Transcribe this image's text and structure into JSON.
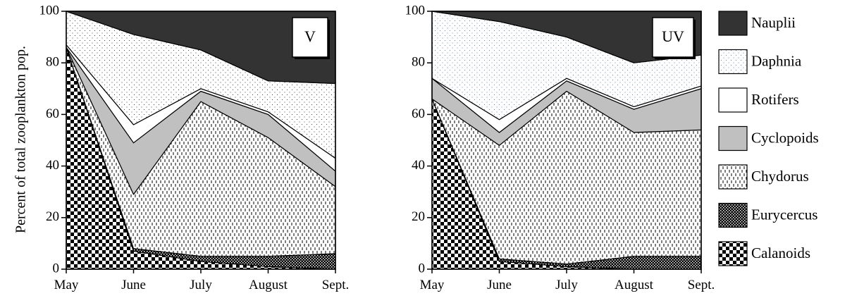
{
  "chart_data": [
    {
      "type": "area",
      "stacked": true,
      "panel_label": "V",
      "ylabel": "Percent of total zooplankton pop.",
      "ylim": [
        0,
        100
      ],
      "yticks": [
        0,
        20,
        40,
        60,
        80,
        100
      ],
      "categories": [
        "May",
        "June",
        "July",
        "August",
        "Sept."
      ],
      "series": [
        {
          "name": "Calanoids",
          "values": [
            86,
            7,
            3,
            1,
            0
          ]
        },
        {
          "name": "Eurycercus",
          "values": [
            0,
            1,
            2,
            4,
            6
          ]
        },
        {
          "name": "Chydorus",
          "values": [
            0,
            21,
            60,
            46,
            26
          ]
        },
        {
          "name": "Cyclopoids",
          "values": [
            0,
            20,
            4,
            9,
            6
          ]
        },
        {
          "name": "Rotifers",
          "values": [
            1,
            7,
            1,
            1,
            5
          ]
        },
        {
          "name": "Daphnia",
          "values": [
            13,
            35,
            15,
            12,
            29
          ]
        },
        {
          "name": "Nauplii",
          "values": [
            0,
            9,
            15,
            27,
            28
          ]
        }
      ],
      "legend_position": "right"
    },
    {
      "type": "area",
      "stacked": true,
      "panel_label": "UV",
      "ylim": [
        0,
        100
      ],
      "yticks": [
        0,
        20,
        40,
        60,
        80,
        100
      ],
      "categories": [
        "May",
        "June",
        "July",
        "August",
        "Sept."
      ],
      "series": [
        {
          "name": "Calanoids",
          "values": [
            66,
            3,
            1,
            0,
            0
          ]
        },
        {
          "name": "Eurycercus",
          "values": [
            0,
            1,
            1,
            5,
            5
          ]
        },
        {
          "name": "Chydorus",
          "values": [
            0,
            44,
            67,
            48,
            49
          ]
        },
        {
          "name": "Cyclopoids",
          "values": [
            8,
            5,
            4,
            9,
            16
          ]
        },
        {
          "name": "Rotifers",
          "values": [
            0,
            5,
            1,
            1,
            1
          ]
        },
        {
          "name": "Daphnia",
          "values": [
            26,
            38,
            16,
            17,
            12
          ]
        },
        {
          "name": "Nauplii",
          "values": [
            0,
            4,
            10,
            20,
            17
          ]
        }
      ],
      "legend_position": "right"
    }
  ],
  "legend": {
    "entries": [
      "Nauplii",
      "Daphnia",
      "Rotifers",
      "Cyclopoids",
      "Chydorus",
      "Eurycercus",
      "Calanoids"
    ]
  }
}
